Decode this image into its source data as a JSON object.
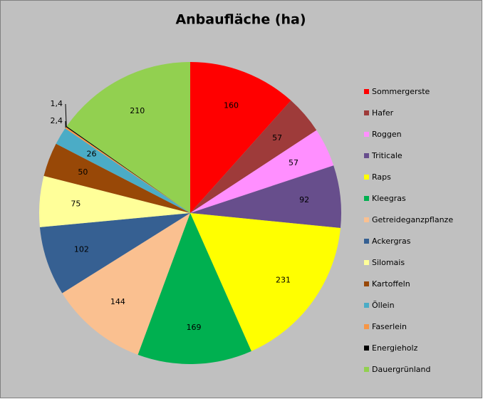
{
  "chart_data": {
    "type": "pie",
    "title": "Anbaufläche (ha)",
    "categories": [
      "Sommergerste",
      "Hafer",
      "Roggen",
      "Triticale",
      "Raps",
      "Kleegras",
      "Getreideganzpflanze",
      "Ackergras",
      "Silomais",
      "Kartoffeln",
      "Öllein",
      "Faserlein",
      "Energieholz",
      "Dauergrünland"
    ],
    "values": [
      160,
      57,
      57,
      92,
      231,
      169,
      144,
      102,
      75,
      50,
      26,
      2.4,
      1.4,
      210
    ],
    "value_labels": [
      "160",
      "57",
      "57",
      "92",
      "231",
      "169",
      "144",
      "102",
      "75",
      "50",
      "26",
      "2,4",
      "1,4",
      "210"
    ],
    "colors": [
      "#ff0000",
      "#9e3b3a",
      "#ff8fff",
      "#674e8c",
      "#ffff00",
      "#00b050",
      "#fac090",
      "#366092",
      "#ffff99",
      "#984807",
      "#4bacc6",
      "#f79646",
      "#000000",
      "#92d050"
    ],
    "legend": "right"
  }
}
